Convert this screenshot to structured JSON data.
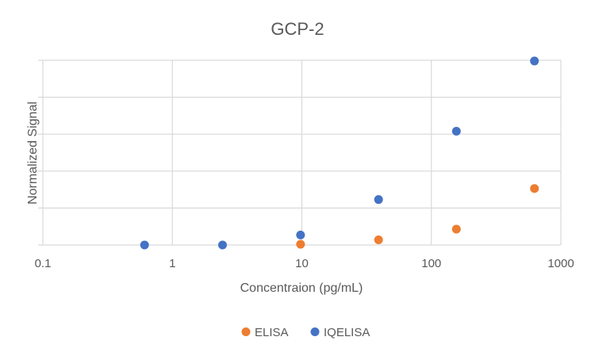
{
  "chart_data": {
    "type": "scatter",
    "title": "GCP-2",
    "xlabel": "Concentraion (pg/mL)",
    "ylabel": "Normalized Signal",
    "xscale": "log",
    "xlim": [
      0.1,
      1000
    ],
    "ylim": [
      0,
      5
    ],
    "x_tick_labels": [
      "0.1",
      "1",
      "10",
      "100",
      "1000"
    ],
    "x_ticks": [
      0.1,
      1,
      10,
      100,
      1000
    ],
    "y_tick_labels": [],
    "grid": true,
    "legend_position": "bottom",
    "series": [
      {
        "name": "ELISA",
        "color": "#ED7D31",
        "points": [
          {
            "x": 9.77,
            "y": 0.02
          },
          {
            "x": 39.1,
            "y": 0.14
          },
          {
            "x": 156,
            "y": 0.43
          },
          {
            "x": 625,
            "y": 1.53
          }
        ]
      },
      {
        "name": "IQELISA",
        "color": "#4472C4",
        "points": [
          {
            "x": 0.61,
            "y": 0.0
          },
          {
            "x": 2.44,
            "y": 0.0
          },
          {
            "x": 9.77,
            "y": 0.27
          },
          {
            "x": 39.1,
            "y": 1.23
          },
          {
            "x": 156,
            "y": 3.08
          },
          {
            "x": 625,
            "y": 4.98
          }
        ]
      }
    ]
  }
}
